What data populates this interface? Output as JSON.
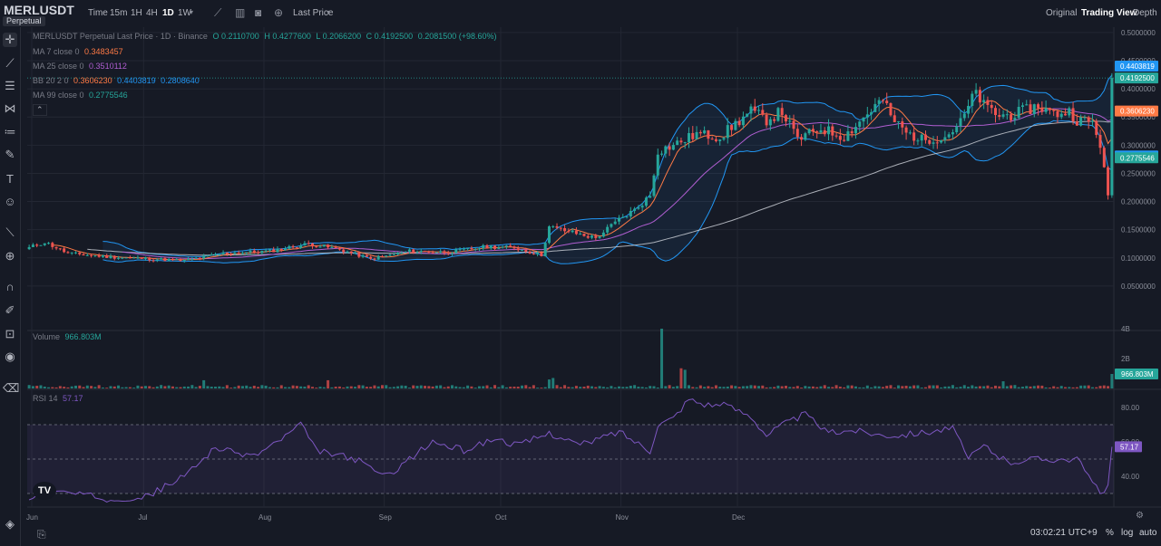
{
  "header": {
    "symbol": "MERLUSDT",
    "badge": "Perpetual",
    "time_label": "Time",
    "intervals": [
      "15m",
      "1H",
      "4H",
      "1D",
      "1W"
    ],
    "active_interval": "1D",
    "price_type": "Last Price",
    "views": [
      "Original",
      "Trading View",
      "Depth"
    ],
    "active_view": "Trading View"
  },
  "legend": {
    "main_title": "MERLUSDT Perpetual Last Price · 1D · Binance",
    "ohlc": {
      "o": "O 0.2110700",
      "h": "H 0.4277600",
      "l": "L 0.2066200",
      "c": "C 0.4192500",
      "chg": "0.2081500 (+98.60%)"
    },
    "ma7": {
      "label": "MA 7 close 0",
      "value": "0.3483457"
    },
    "ma25": {
      "label": "MA 25 close 0",
      "value": "0.3510112"
    },
    "bb": {
      "label": "BB 20 2 0",
      "v1": "0.3606230",
      "v2": "0.4403819",
      "v3": "0.2808640"
    },
    "ma99": {
      "label": "MA 99 close 0",
      "value": "0.2775546"
    },
    "volume": {
      "label": "Volume",
      "value": "966.803M"
    },
    "rsi": {
      "label": "RSI 14",
      "value": "57.17"
    }
  },
  "colors": {
    "up": "#26a69a",
    "down": "#ef5350",
    "ma7": "#ff7a45",
    "ma25": "#b05ed1",
    "ma99": "#d1d4dc",
    "bb": "#2196f3",
    "rsi": "#7e57c2"
  },
  "footer": {
    "time": "03:02:21 UTC+9",
    "pct": "%",
    "log": "log",
    "auto": "auto"
  },
  "chart_data": {
    "type": "candlestick",
    "x_ticks": [
      "Jun",
      "Jul",
      "Aug",
      "Sep",
      "Oct",
      "Nov",
      "Dec"
    ],
    "price_ticks": [
      "0.5000000",
      "0.4500000",
      "0.4000000",
      "0.3500000",
      "0.3000000",
      "0.2500000",
      "0.2000000",
      "0.1500000",
      "0.1000000",
      "0.0500000"
    ],
    "price_range": [
      0.0,
      0.5
    ],
    "price_tags": [
      {
        "value": "0.4403819",
        "color": "#2196f3"
      },
      {
        "value": "0.4192500",
        "color": "#26a69a"
      },
      {
        "value": "0.3606230",
        "color": "#ff7a45"
      },
      {
        "value": "0.2808640",
        "color": "#2196f3"
      },
      {
        "value": "0.2775546",
        "color": "#26a69a"
      }
    ],
    "volume_ticks": [
      "4B",
      "2B"
    ],
    "volume_tag": "966.803M",
    "rsi_ticks": [
      "80.00",
      "60.00",
      "40.00"
    ],
    "rsi_tag": "57.17",
    "close_anchors": [
      [
        0,
        0.118
      ],
      [
        4,
        0.128
      ],
      [
        10,
        0.108
      ],
      [
        20,
        0.102
      ],
      [
        32,
        0.098
      ],
      [
        40,
        0.095
      ],
      [
        50,
        0.108
      ],
      [
        62,
        0.112
      ],
      [
        72,
        0.125
      ],
      [
        80,
        0.115
      ],
      [
        88,
        0.098
      ],
      [
        98,
        0.112
      ],
      [
        108,
        0.11
      ],
      [
        118,
        0.12
      ],
      [
        125,
        0.118
      ],
      [
        132,
        0.105
      ],
      [
        134,
        0.155
      ],
      [
        140,
        0.145
      ],
      [
        146,
        0.135
      ],
      [
        152,
        0.168
      ],
      [
        156,
        0.185
      ],
      [
        160,
        0.21
      ],
      [
        162,
        0.29
      ],
      [
        166,
        0.3
      ],
      [
        172,
        0.32
      ],
      [
        178,
        0.315
      ],
      [
        182,
        0.338
      ],
      [
        186,
        0.36
      ],
      [
        190,
        0.345
      ],
      [
        194,
        0.36
      ],
      [
        198,
        0.31
      ],
      [
        204,
        0.33
      ],
      [
        210,
        0.315
      ],
      [
        214,
        0.342
      ],
      [
        218,
        0.37
      ],
      [
        220,
        0.38
      ],
      [
        222,
        0.35
      ],
      [
        226,
        0.322
      ],
      [
        230,
        0.31
      ],
      [
        236,
        0.315
      ],
      [
        240,
        0.34
      ],
      [
        244,
        0.395
      ],
      [
        246,
        0.37
      ],
      [
        250,
        0.352
      ],
      [
        254,
        0.355
      ],
      [
        260,
        0.37
      ],
      [
        264,
        0.355
      ],
      [
        268,
        0.36
      ],
      [
        270,
        0.345
      ],
      [
        274,
        0.34
      ],
      [
        276,
        0.302
      ],
      [
        278,
        0.211
      ],
      [
        279,
        0.41925
      ]
    ],
    "volume_spikes": [
      [
        163,
        4.0
      ],
      [
        168,
        1.35
      ],
      [
        169,
        1.25
      ],
      [
        134,
        0.6
      ],
      [
        135,
        0.7
      ],
      [
        45,
        0.55
      ],
      [
        77,
        0.55
      ],
      [
        251,
        0.48
      ],
      [
        279,
        0.97
      ]
    ],
    "rsi_anchors": [
      [
        0,
        28
      ],
      [
        8,
        31
      ],
      [
        20,
        27
      ],
      [
        30,
        28
      ],
      [
        40,
        40
      ],
      [
        48,
        57
      ],
      [
        52,
        54
      ],
      [
        58,
        52
      ],
      [
        64,
        60
      ],
      [
        70,
        70
      ],
      [
        74,
        55
      ],
      [
        84,
        50
      ],
      [
        92,
        40
      ],
      [
        98,
        50
      ],
      [
        104,
        60
      ],
      [
        112,
        55
      ],
      [
        120,
        62
      ],
      [
        126,
        58
      ],
      [
        134,
        65
      ],
      [
        138,
        62
      ],
      [
        142,
        58
      ],
      [
        152,
        66
      ],
      [
        160,
        55
      ],
      [
        162,
        70
      ],
      [
        166,
        74
      ],
      [
        170,
        85
      ],
      [
        174,
        82
      ],
      [
        180,
        81
      ],
      [
        186,
        75
      ],
      [
        190,
        64
      ],
      [
        194,
        70
      ],
      [
        200,
        76
      ],
      [
        206,
        65
      ],
      [
        212,
        67
      ],
      [
        220,
        64
      ],
      [
        224,
        64
      ],
      [
        232,
        66
      ],
      [
        238,
        68
      ],
      [
        242,
        50
      ],
      [
        246,
        58
      ],
      [
        252,
        48
      ],
      [
        258,
        50
      ],
      [
        264,
        50
      ],
      [
        270,
        50
      ],
      [
        276,
        30
      ],
      [
        278,
        35
      ],
      [
        279,
        57.17
      ]
    ]
  }
}
